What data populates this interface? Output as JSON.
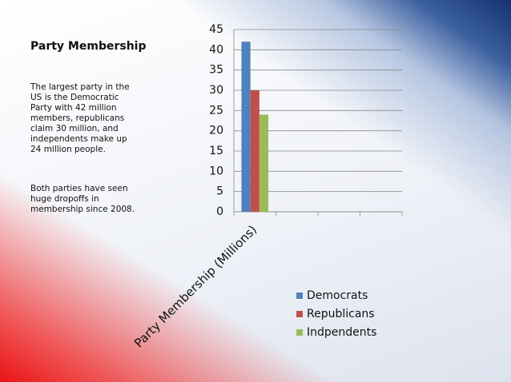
{
  "slide": {
    "title": "Party Membership",
    "paragraphs": [
      "The largest party in the US is the Democratic Party with 42 million members, republicans claim 30 million, and independents make up 24 million people.",
      "Both parties have seen huge dropoffs in membership since 2008."
    ]
  },
  "chart_data": {
    "type": "bar",
    "categories": [
      "Party Membership (Millions)",
      null,
      null,
      null
    ],
    "series": [
      {
        "name": "Democrats",
        "color": "#4f81bd",
        "values": [
          42,
          null,
          null,
          null
        ]
      },
      {
        "name": "Republicans",
        "color": "#c0504d",
        "values": [
          30,
          null,
          null,
          null
        ]
      },
      {
        "name": "Indpendents",
        "color": "#9bbb59",
        "values": [
          24,
          null,
          null,
          null
        ]
      }
    ],
    "ylim": [
      0,
      45
    ],
    "yticks": [
      0,
      5,
      10,
      15,
      20,
      25,
      30,
      35,
      40,
      45
    ],
    "grid": true,
    "legend": "bottom-right"
  }
}
